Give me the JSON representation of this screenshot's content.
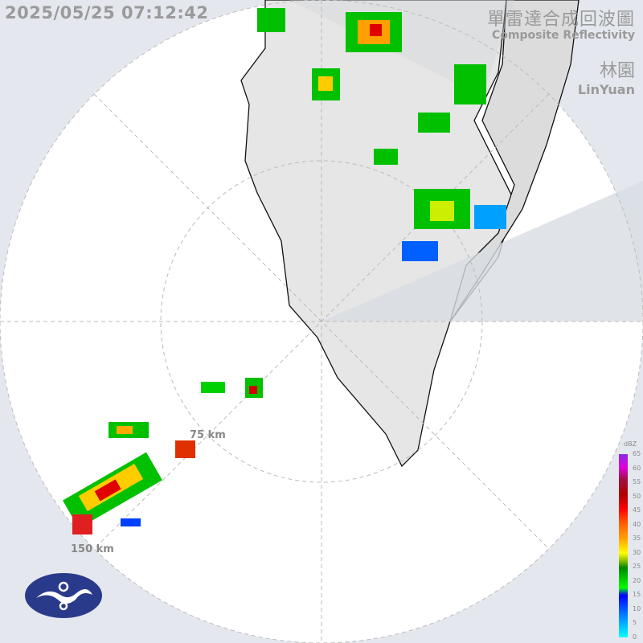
{
  "timestamp": "2025/05/25 07:12:42",
  "title": {
    "zh": "單雷達合成回波圖",
    "en": "Composite Reflectivity",
    "station_zh": "林園",
    "station_en": "LinYuan"
  },
  "range_rings": {
    "inner": "75 km",
    "outer": "150 km"
  },
  "legend": {
    "unit": "dBZ",
    "ticks": [
      "65",
      "60",
      "55",
      "50",
      "45",
      "40",
      "35",
      "30",
      "25",
      "20",
      "15",
      "10",
      "5",
      "0"
    ]
  },
  "colors": {
    "background": "#e4e8ee",
    "radar_disk": "#ffffff",
    "land": "#e8e8e8",
    "blocked_sector": "#d8dde4"
  },
  "logo": "cwa-logo"
}
